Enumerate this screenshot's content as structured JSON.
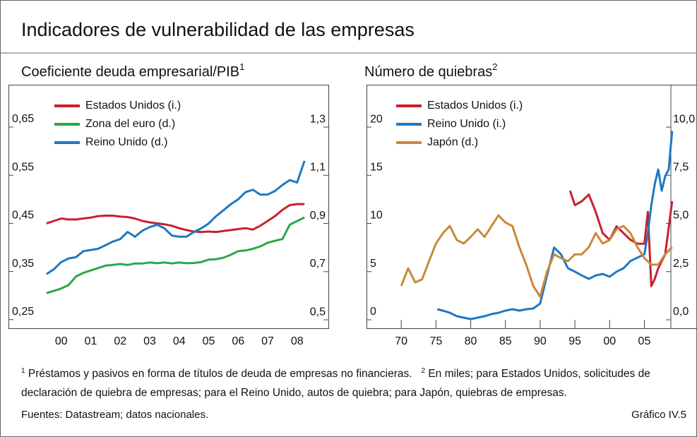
{
  "title": "Indicadores de vulnerabilidad de las empresas",
  "chart_data": [
    {
      "type": "line",
      "subtitle": "Coeficiente deuda empresarial/PIB",
      "subtitle_note": "1",
      "legend": "upper left",
      "x": [
        2000,
        2000.25,
        2000.5,
        2000.75,
        2001,
        2001.25,
        2001.5,
        2001.75,
        2002,
        2002.25,
        2002.5,
        2002.75,
        2003,
        2003.25,
        2003.5,
        2003.75,
        2004,
        2004.25,
        2004.5,
        2004.75,
        2005,
        2005.25,
        2005.5,
        2005.75,
        2006,
        2006.25,
        2006.5,
        2006.75,
        2007,
        2007.25,
        2007.5,
        2007.75,
        2008,
        2008.25,
        2008.5,
        2008.75
      ],
      "xlim": [
        1998.71,
        2009.56
      ],
      "xticks": [
        {
          "value": 2000.5,
          "label": "00"
        },
        {
          "value": 2001.5,
          "label": "01"
        },
        {
          "value": 2002.5,
          "label": "02"
        },
        {
          "value": 2003.5,
          "label": "03"
        },
        {
          "value": 2004.5,
          "label": "04"
        },
        {
          "value": 2005.5,
          "label": "05"
        },
        {
          "value": 2006.5,
          "label": "06"
        },
        {
          "value": 2007.5,
          "label": "07"
        },
        {
          "value": 2008.5,
          "label": "08"
        }
      ],
      "ylim": [
        0.232,
        0.738
      ],
      "yticks": [
        {
          "value": 0.25,
          "label": "0,25"
        },
        {
          "value": 0.35,
          "label": "0,35"
        },
        {
          "value": 0.45,
          "label": "0,45"
        },
        {
          "value": 0.55,
          "label": "0,55"
        },
        {
          "value": 0.65,
          "label": "0,65"
        }
      ],
      "y2lim": [
        0.465,
        1.476
      ],
      "y2ticks": [
        {
          "value": 0.5,
          "label": "0,5"
        },
        {
          "value": 0.7,
          "label": "0,7"
        },
        {
          "value": 0.9,
          "label": "0,9"
        },
        {
          "value": 1.1,
          "label": "1,1"
        },
        {
          "value": 1.3,
          "label": "1,3"
        }
      ],
      "series": [
        {
          "name": "Estados Unidos (i.)",
          "color": "#c8202f",
          "axis": "y",
          "values": [
            0.45,
            0.455,
            0.46,
            0.458,
            0.458,
            0.46,
            0.462,
            0.465,
            0.466,
            0.466,
            0.464,
            0.463,
            0.46,
            0.455,
            0.452,
            0.45,
            0.448,
            0.445,
            0.44,
            0.436,
            0.433,
            0.432,
            0.433,
            0.432,
            0.434,
            0.436,
            0.438,
            0.44,
            0.437,
            0.445,
            0.455,
            0.465,
            0.478,
            0.488,
            0.49,
            0.49
          ]
        },
        {
          "name": "Zona del euro (d.)",
          "color": "#2aa84a",
          "axis": "y2",
          "values": [
            0.611,
            0.62,
            0.63,
            0.645,
            0.68,
            0.695,
            0.705,
            0.715,
            0.725,
            0.728,
            0.732,
            0.728,
            0.734,
            0.734,
            0.738,
            0.735,
            0.738,
            0.734,
            0.738,
            0.735,
            0.736,
            0.74,
            0.75,
            0.752,
            0.758,
            0.77,
            0.785,
            0.788,
            0.795,
            0.805,
            0.82,
            0.828,
            0.835,
            0.895,
            0.91,
            0.925
          ]
        },
        {
          "name": "Reino Unido (d.)",
          "color": "#1f78c1",
          "axis": "y2",
          "values": [
            0.69,
            0.71,
            0.74,
            0.755,
            0.76,
            0.785,
            0.79,
            0.795,
            0.81,
            0.825,
            0.835,
            0.865,
            0.845,
            0.87,
            0.885,
            0.895,
            0.88,
            0.85,
            0.845,
            0.845,
            0.865,
            0.88,
            0.9,
            0.93,
            0.955,
            0.98,
            1.0,
            1.03,
            1.04,
            1.02,
            1.02,
            1.035,
            1.06,
            1.08,
            1.07,
            1.16
          ]
        }
      ]
    },
    {
      "type": "line",
      "subtitle": "Número de quiebras",
      "subtitle_note": "2",
      "legend": "upper left",
      "xlim": [
        1965,
        2013.9
      ],
      "xticks": [
        {
          "value": 1970,
          "label": "70"
        },
        {
          "value": 1975,
          "label": "75"
        },
        {
          "value": 1980,
          "label": "80"
        },
        {
          "value": 1985,
          "label": "85"
        },
        {
          "value": 1990,
          "label": "90"
        },
        {
          "value": 1995,
          "label": "95"
        },
        {
          "value": 2000,
          "label": "00"
        },
        {
          "value": 2005,
          "label": "05"
        }
      ],
      "ylim": [
        -0.88,
        24.4
      ],
      "yticks": [
        0,
        5,
        10,
        15,
        20
      ],
      "y2lim": [
        -0.44,
        12.2
      ],
      "y2ticks": [
        {
          "value": 0,
          "label": "0,0"
        },
        {
          "value": 2.5,
          "label": "2,5"
        },
        {
          "value": 5,
          "label": "5,0"
        },
        {
          "value": 7.5,
          "label": "7,5"
        },
        {
          "value": 10,
          "label": "10,0"
        }
      ],
      "series": [
        {
          "name": "Estados Unidos (i.)",
          "color": "#c8202f",
          "axis": "y",
          "x": [
            1994.3,
            1995,
            1996,
            1997,
            1998,
            1999,
            2000,
            2001,
            2002,
            2003,
            2004,
            2005,
            2005.5,
            2006,
            2006.5,
            2007,
            2008,
            2009
          ],
          "values": [
            13.4,
            11.9,
            12.3,
            13.0,
            11.2,
            9.0,
            8.3,
            9.7,
            9.0,
            8.3,
            7.9,
            7.9,
            11.2,
            3.5,
            4.25,
            5.35,
            6.8,
            12.3
          ]
        },
        {
          "name": "Reino Unido (i.)",
          "color": "#1f78c1",
          "axis": "y",
          "x": [
            1975.2,
            1976,
            1977,
            1978,
            1979,
            1980,
            1981,
            1982,
            1983,
            1984,
            1985,
            1986,
            1987,
            1988,
            1989,
            1990,
            1991,
            1992,
            1993,
            1994,
            1995,
            1996,
            1997,
            1998,
            1999,
            2000,
            2001,
            2002,
            2003,
            2004,
            2005,
            2005.5,
            2006,
            2006.5,
            2007,
            2007.5,
            2008,
            2008.5,
            2009
          ],
          "values": [
            1.1,
            0.95,
            0.73,
            0.37,
            0.22,
            0.07,
            0.22,
            0.37,
            0.59,
            0.73,
            0.95,
            1.1,
            0.95,
            1.1,
            1.17,
            1.69,
            4.6,
            7.5,
            6.8,
            5.35,
            5.0,
            4.6,
            4.25,
            4.6,
            4.76,
            4.47,
            5.0,
            5.35,
            6.1,
            6.45,
            6.8,
            9.0,
            11.9,
            14.1,
            15.6,
            13.4,
            14.9,
            15.6,
            19.6
          ]
        },
        {
          "name": "Japón (d.)",
          "color": "#c8893a",
          "axis": "y2",
          "x": [
            1970,
            1971,
            1972,
            1973,
            1974,
            1975,
            1976,
            1977,
            1978,
            1979,
            1980,
            1981,
            1982,
            1983,
            1984,
            1985,
            1986,
            1987,
            1988,
            1989,
            1990,
            1991,
            1992,
            1993,
            1994,
            1995,
            1996,
            1997,
            1998,
            1999,
            2000,
            2001,
            2002,
            2003,
            2004,
            2005,
            2006,
            2007,
            2008,
            2009
          ],
          "values": [
            1.76,
            2.67,
            1.94,
            2.1,
            3.04,
            3.96,
            4.5,
            4.87,
            4.14,
            3.96,
            4.3,
            4.7,
            4.3,
            4.87,
            5.42,
            5.05,
            4.87,
            3.77,
            2.86,
            1.76,
            1.2,
            2.5,
            3.4,
            3.2,
            3.04,
            3.4,
            3.4,
            3.77,
            4.5,
            3.96,
            4.14,
            4.7,
            4.87,
            4.5,
            3.77,
            3.2,
            2.86,
            2.86,
            3.4,
            3.77
          ]
        }
      ]
    }
  ],
  "footnotes": [
    {
      "marker": "1",
      "text": "Préstamos y pasivos en forma de títulos de deuda de empresas no financieras."
    },
    {
      "marker": "2",
      "text": "En miles; para Estados Unidos, solicitudes de declaración de quiebra de empresas; para el Reino Unido, autos de quiebra; para Japón, quiebras de empresas."
    }
  ],
  "sources": "Fuentes: Datastream; datos nacionales.",
  "chart_id": "Gráfico IV.5"
}
